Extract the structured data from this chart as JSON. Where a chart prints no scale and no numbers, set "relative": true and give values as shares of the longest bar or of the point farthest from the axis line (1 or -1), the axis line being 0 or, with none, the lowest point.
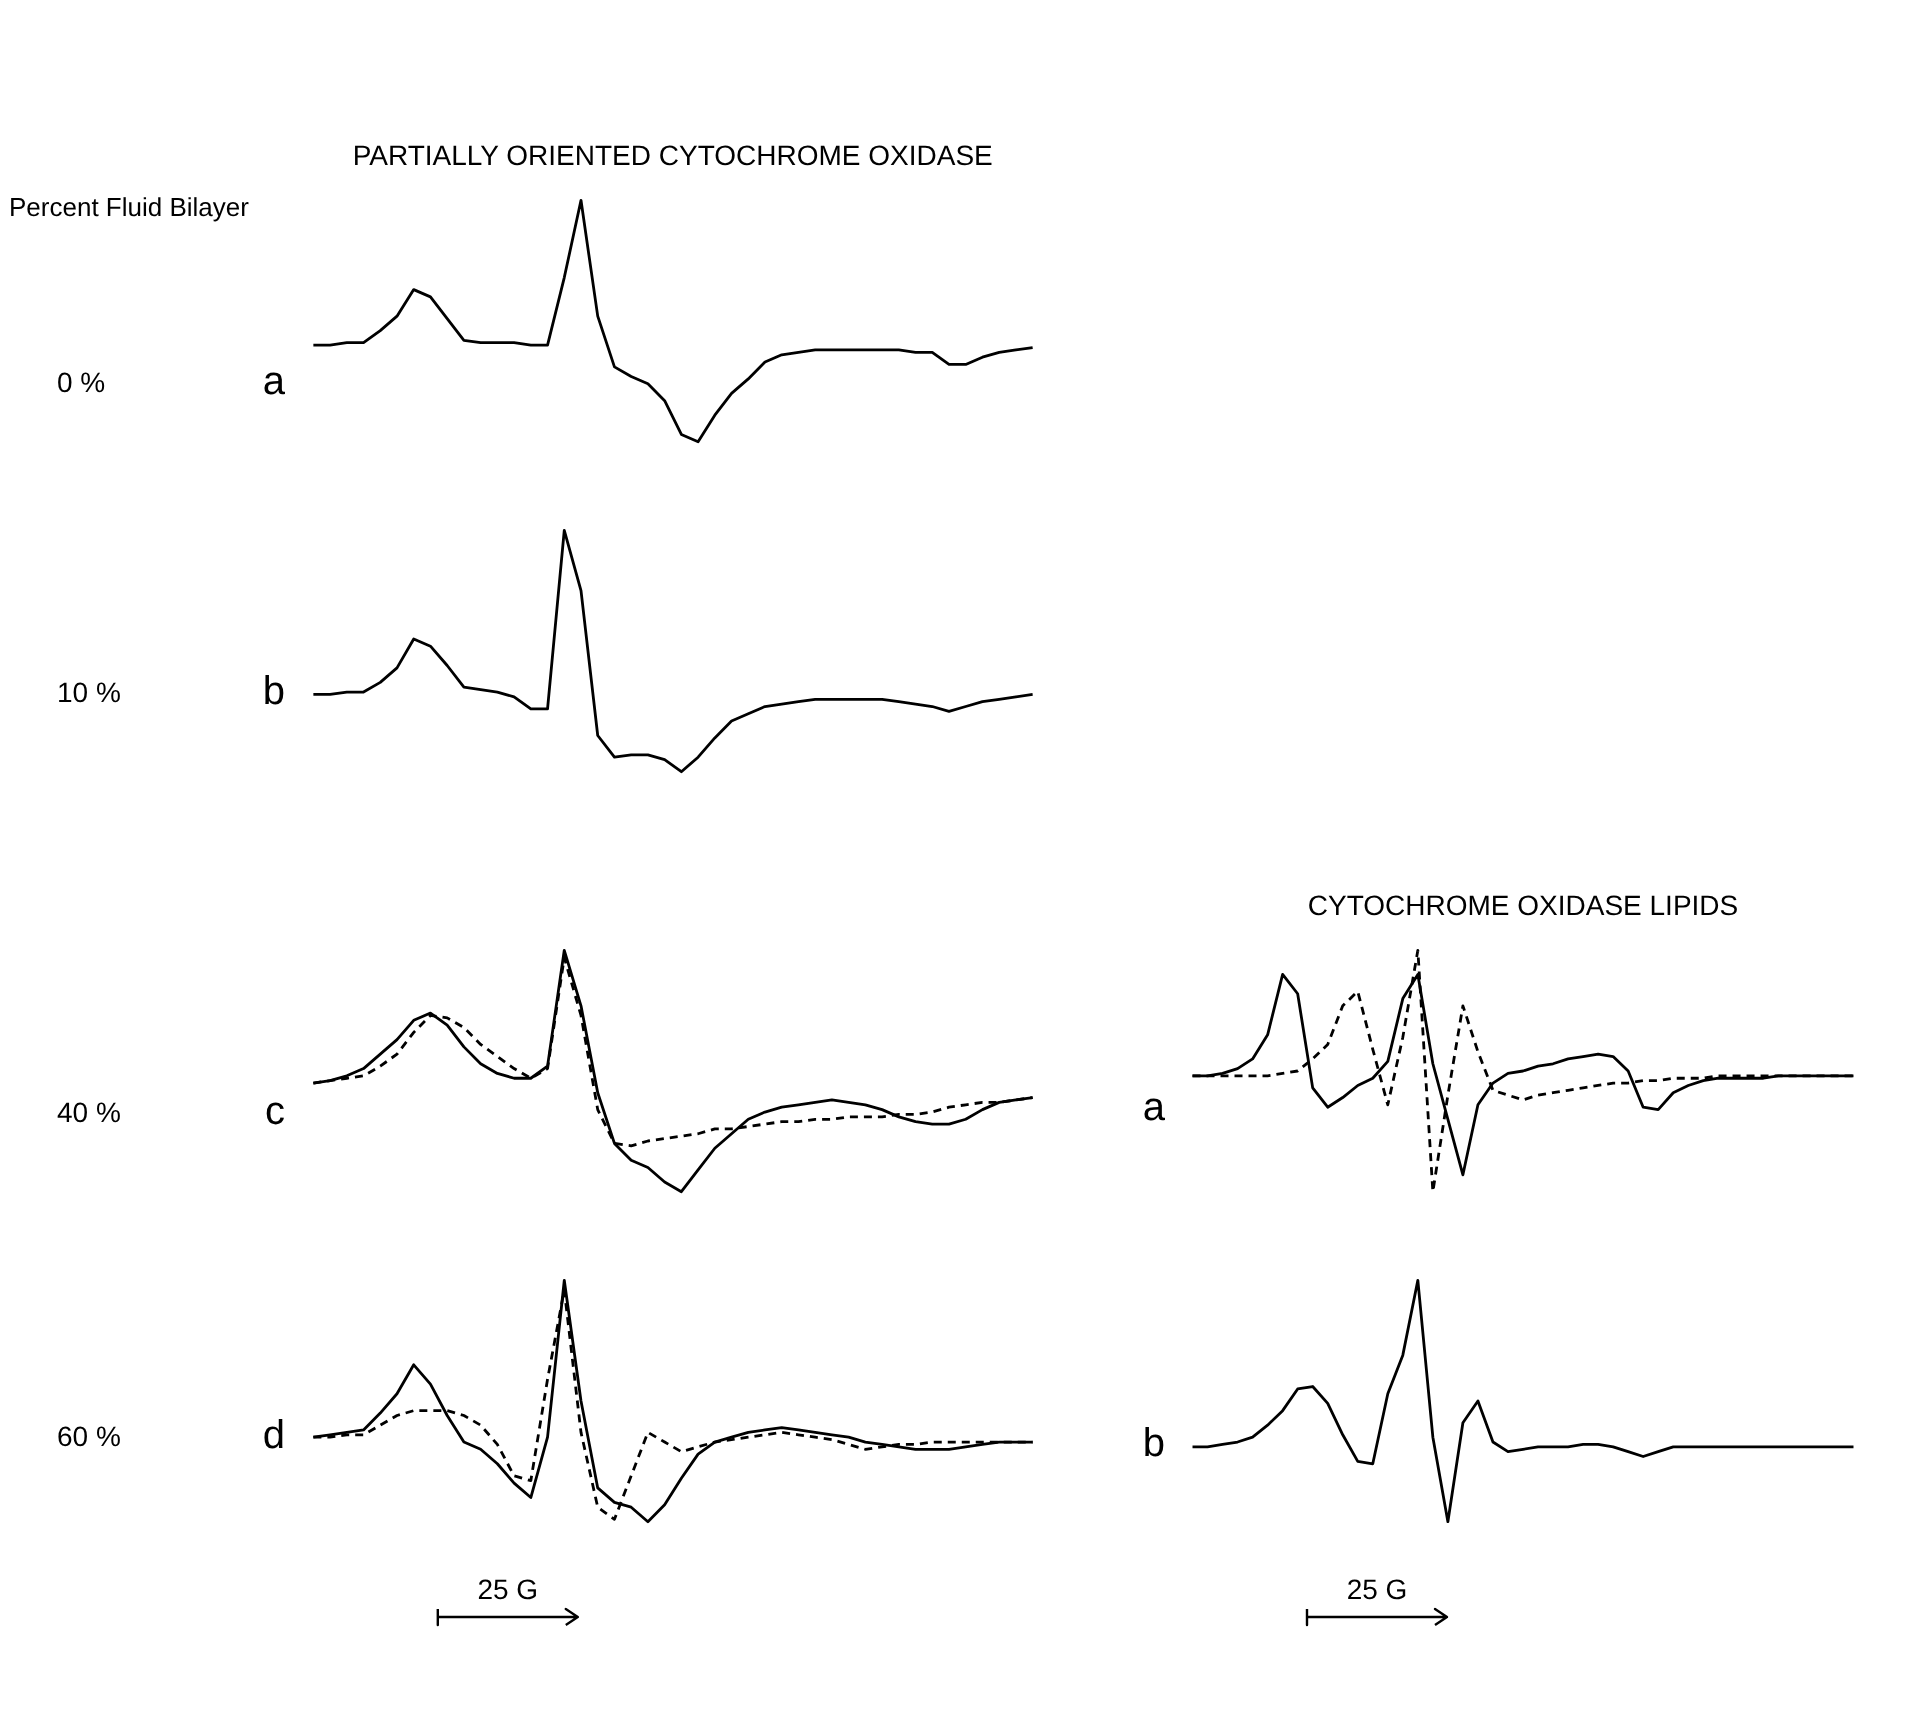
{
  "chart_data": [
    {
      "type": "line",
      "relative": true,
      "title": "PARTIALLY ORIENTED CYTOCHROME OXIDASE",
      "annotations": [
        "Percent Fluid Bilayer"
      ],
      "ylabel": "0 %",
      "subtitle": "a",
      "tick_labels": false,
      "categories": [
        null,
        null,
        null,
        null,
        null,
        null,
        null,
        null,
        null,
        null,
        null,
        null,
        null,
        null,
        null,
        null,
        null,
        null,
        null,
        null,
        null,
        null,
        null,
        null,
        null,
        null,
        null,
        null,
        null,
        null,
        null,
        null,
        null,
        null,
        null,
        null,
        null,
        null,
        null,
        null,
        null,
        null,
        null,
        null
      ],
      "series": [
        {
          "color": "#000000",
          "line_style": "solid",
          "values": [
            0.4,
            0.4,
            0.41,
            0.41,
            0.46,
            0.52,
            0.63,
            0.6,
            0.51,
            0.42,
            0.41,
            0.41,
            0.41,
            0.4,
            0.4,
            0.68,
            1,
            0.52,
            0.31,
            0.27,
            0.24,
            0.17,
            0.03,
            0,
            0.11,
            0.2,
            0.26,
            0.33,
            0.36,
            0.37,
            0.38,
            0.38,
            0.38,
            0.38,
            0.38,
            0.38,
            0.37,
            0.37,
            0.32,
            0.32,
            0.35,
            0.37,
            0.38,
            0.39
          ]
        }
      ]
    },
    {
      "type": "line",
      "relative": true,
      "ylabel": "10 %",
      "subtitle": "b",
      "tick_labels": false,
      "categories": [
        null,
        null,
        null,
        null,
        null,
        null,
        null,
        null,
        null,
        null,
        null,
        null,
        null,
        null,
        null,
        null,
        null,
        null,
        null,
        null,
        null,
        null,
        null,
        null,
        null,
        null,
        null,
        null,
        null,
        null,
        null,
        null,
        null,
        null,
        null,
        null,
        null,
        null,
        null,
        null,
        null,
        null,
        null,
        null
      ],
      "series": [
        {
          "color": "#000000",
          "line_style": "solid",
          "values": [
            0.32,
            0.32,
            0.33,
            0.33,
            0.37,
            0.43,
            0.55,
            0.52,
            0.44,
            0.35,
            0.34,
            0.33,
            0.31,
            0.26,
            0.26,
            1,
            0.75,
            0.15,
            0.06,
            0.07,
            0.07,
            0.05,
            0,
            0.06,
            0.14,
            0.21,
            0.24,
            0.27,
            0.28,
            0.29,
            0.3,
            0.3,
            0.3,
            0.3,
            0.3,
            0.29,
            0.28,
            0.27,
            0.25,
            0.27,
            0.29,
            0.3,
            0.31,
            0.32
          ]
        }
      ]
    },
    {
      "type": "line",
      "relative": true,
      "ylabel": "40 %",
      "subtitle": "c",
      "tick_labels": false,
      "categories": [
        null,
        null,
        null,
        null,
        null,
        null,
        null,
        null,
        null,
        null,
        null,
        null,
        null,
        null,
        null,
        null,
        null,
        null,
        null,
        null,
        null,
        null,
        null,
        null,
        null,
        null,
        null,
        null,
        null,
        null,
        null,
        null,
        null,
        null,
        null,
        null,
        null,
        null,
        null,
        null,
        null,
        null,
        null,
        null
      ],
      "series": [
        {
          "color": "#000000",
          "line_style": "solid",
          "values": [
            0.45,
            0.46,
            0.48,
            0.51,
            0.57,
            0.63,
            0.71,
            0.74,
            0.69,
            0.6,
            0.53,
            0.49,
            0.47,
            0.47,
            0.52,
            1,
            0.77,
            0.41,
            0.2,
            0.13,
            0.1,
            0.04,
            0,
            0.09,
            0.18,
            0.24,
            0.3,
            0.33,
            0.35,
            0.36,
            0.37,
            0.38,
            0.37,
            0.36,
            0.34,
            0.31,
            0.29,
            0.28,
            0.28,
            0.3,
            0.34,
            0.37,
            0.38,
            0.39
          ]
        },
        {
          "color": "#000000",
          "line_style": "dashed",
          "values": [
            0.45,
            0.46,
            0.47,
            0.48,
            0.52,
            0.57,
            0.66,
            0.73,
            0.72,
            0.68,
            0.61,
            0.56,
            0.51,
            0.47,
            0.51,
            0.97,
            0.73,
            0.34,
            0.2,
            0.19,
            0.21,
            0.22,
            0.23,
            0.24,
            0.26,
            0.26,
            0.27,
            0.28,
            0.29,
            0.29,
            0.3,
            0.3,
            0.31,
            0.31,
            0.31,
            0.32,
            0.32,
            0.33,
            0.35,
            0.36,
            0.37,
            0.37,
            0.38,
            0.39
          ]
        }
      ]
    },
    {
      "type": "line",
      "relative": true,
      "ylabel": "60 %",
      "subtitle": "d",
      "xlabel": "25 G",
      "tick_labels": false,
      "categories": [
        null,
        null,
        null,
        null,
        null,
        null,
        null,
        null,
        null,
        null,
        null,
        null,
        null,
        null,
        null,
        null,
        null,
        null,
        null,
        null,
        null,
        null,
        null,
        null,
        null,
        null,
        null,
        null,
        null,
        null,
        null,
        null,
        null,
        null,
        null,
        null,
        null,
        null,
        null,
        null,
        null,
        null,
        null,
        null
      ],
      "series": [
        {
          "color": "#000000",
          "line_style": "solid",
          "values": [
            0.35,
            0.36,
            0.37,
            0.38,
            0.45,
            0.53,
            0.65,
            0.57,
            0.44,
            0.33,
            0.3,
            0.24,
            0.16,
            0.1,
            0.35,
            1,
            0.5,
            0.14,
            0.08,
            0.06,
            0,
            0.07,
            0.18,
            0.28,
            0.33,
            0.35,
            0.37,
            0.38,
            0.39,
            0.38,
            0.37,
            0.36,
            0.35,
            0.33,
            0.32,
            0.31,
            0.3,
            0.3,
            0.3,
            0.31,
            0.32,
            0.33,
            0.33,
            0.33
          ]
        },
        {
          "color": "#000000",
          "line_style": "dashed",
          "values": [
            0.35,
            0.35,
            0.36,
            0.36,
            0.4,
            0.44,
            0.46,
            0.46,
            0.46,
            0.44,
            0.4,
            0.32,
            0.19,
            0.17,
            0.59,
            0.96,
            0.37,
            0.06,
            0.01,
            0.19,
            0.37,
            0.33,
            0.29,
            0.31,
            0.33,
            0.34,
            0.35,
            0.36,
            0.37,
            0.36,
            0.35,
            0.34,
            0.32,
            0.3,
            0.31,
            0.32,
            0.32,
            0.33,
            0.33,
            0.33,
            0.33,
            0.33,
            0.33,
            0.33
          ]
        }
      ]
    },
    {
      "type": "line",
      "relative": true,
      "title": "CYTOCHROME OXIDASE LIPIDS",
      "subtitle": "a",
      "tick_labels": false,
      "categories": [
        null,
        null,
        null,
        null,
        null,
        null,
        null,
        null,
        null,
        null,
        null,
        null,
        null,
        null,
        null,
        null,
        null,
        null,
        null,
        null,
        null,
        null,
        null,
        null,
        null,
        null,
        null,
        null,
        null,
        null,
        null,
        null,
        null,
        null,
        null,
        null,
        null,
        null,
        null,
        null,
        null,
        null,
        null,
        null,
        null
      ],
      "series": [
        {
          "color": "#000000",
          "line_style": "solid",
          "values": [
            0.48,
            0.48,
            0.49,
            0.51,
            0.55,
            0.65,
            0.9,
            0.82,
            0.43,
            0.35,
            0.39,
            0.44,
            0.47,
            0.54,
            0.8,
            0.9,
            0.53,
            0.3,
            0.07,
            0.36,
            0.45,
            0.49,
            0.5,
            0.52,
            0.53,
            0.55,
            0.56,
            0.57,
            0.56,
            0.5,
            0.35,
            0.34,
            0.41,
            0.44,
            0.46,
            0.47,
            0.47,
            0.47,
            0.47,
            0.48,
            0.48,
            0.48,
            0.48,
            0.48,
            0.48
          ]
        },
        {
          "color": "#000000",
          "line_style": "dashed",
          "values": [
            0.48,
            0.48,
            0.48,
            0.48,
            0.48,
            0.48,
            0.49,
            0.5,
            0.55,
            0.61,
            0.77,
            0.83,
            0.59,
            0.36,
            0.64,
            1,
            0,
            0.4,
            0.77,
            0.58,
            0.42,
            0.4,
            0.38,
            0.4,
            0.41,
            0.42,
            0.43,
            0.44,
            0.45,
            0.45,
            0.46,
            0.46,
            0.47,
            0.47,
            0.47,
            0.48,
            0.48,
            0.48,
            0.48,
            0.48,
            0.48,
            0.48,
            0.48,
            0.48,
            0.48
          ]
        }
      ]
    },
    {
      "type": "line",
      "relative": true,
      "subtitle": "b",
      "xlabel": "25 G",
      "tick_labels": false,
      "categories": [
        null,
        null,
        null,
        null,
        null,
        null,
        null,
        null,
        null,
        null,
        null,
        null,
        null,
        null,
        null,
        null,
        null,
        null,
        null,
        null,
        null,
        null,
        null,
        null,
        null,
        null,
        null,
        null,
        null,
        null,
        null,
        null,
        null,
        null,
        null,
        null,
        null,
        null,
        null,
        null,
        null,
        null,
        null,
        null,
        null
      ],
      "series": [
        {
          "color": "#000000",
          "line_style": "solid",
          "values": [
            0.31,
            0.31,
            0.32,
            0.33,
            0.35,
            0.4,
            0.46,
            0.55,
            0.56,
            0.49,
            0.36,
            0.25,
            0.24,
            0.53,
            0.69,
            1,
            0.35,
            0,
            0.41,
            0.5,
            0.33,
            0.29,
            0.3,
            0.31,
            0.31,
            0.31,
            0.32,
            0.32,
            0.31,
            0.29,
            0.27,
            0.29,
            0.31,
            0.31,
            0.31,
            0.31,
            0.31,
            0.31,
            0.31,
            0.31,
            0.31,
            0.31,
            0.31,
            0.31,
            0.31
          ]
        }
      ]
    }
  ]
}
